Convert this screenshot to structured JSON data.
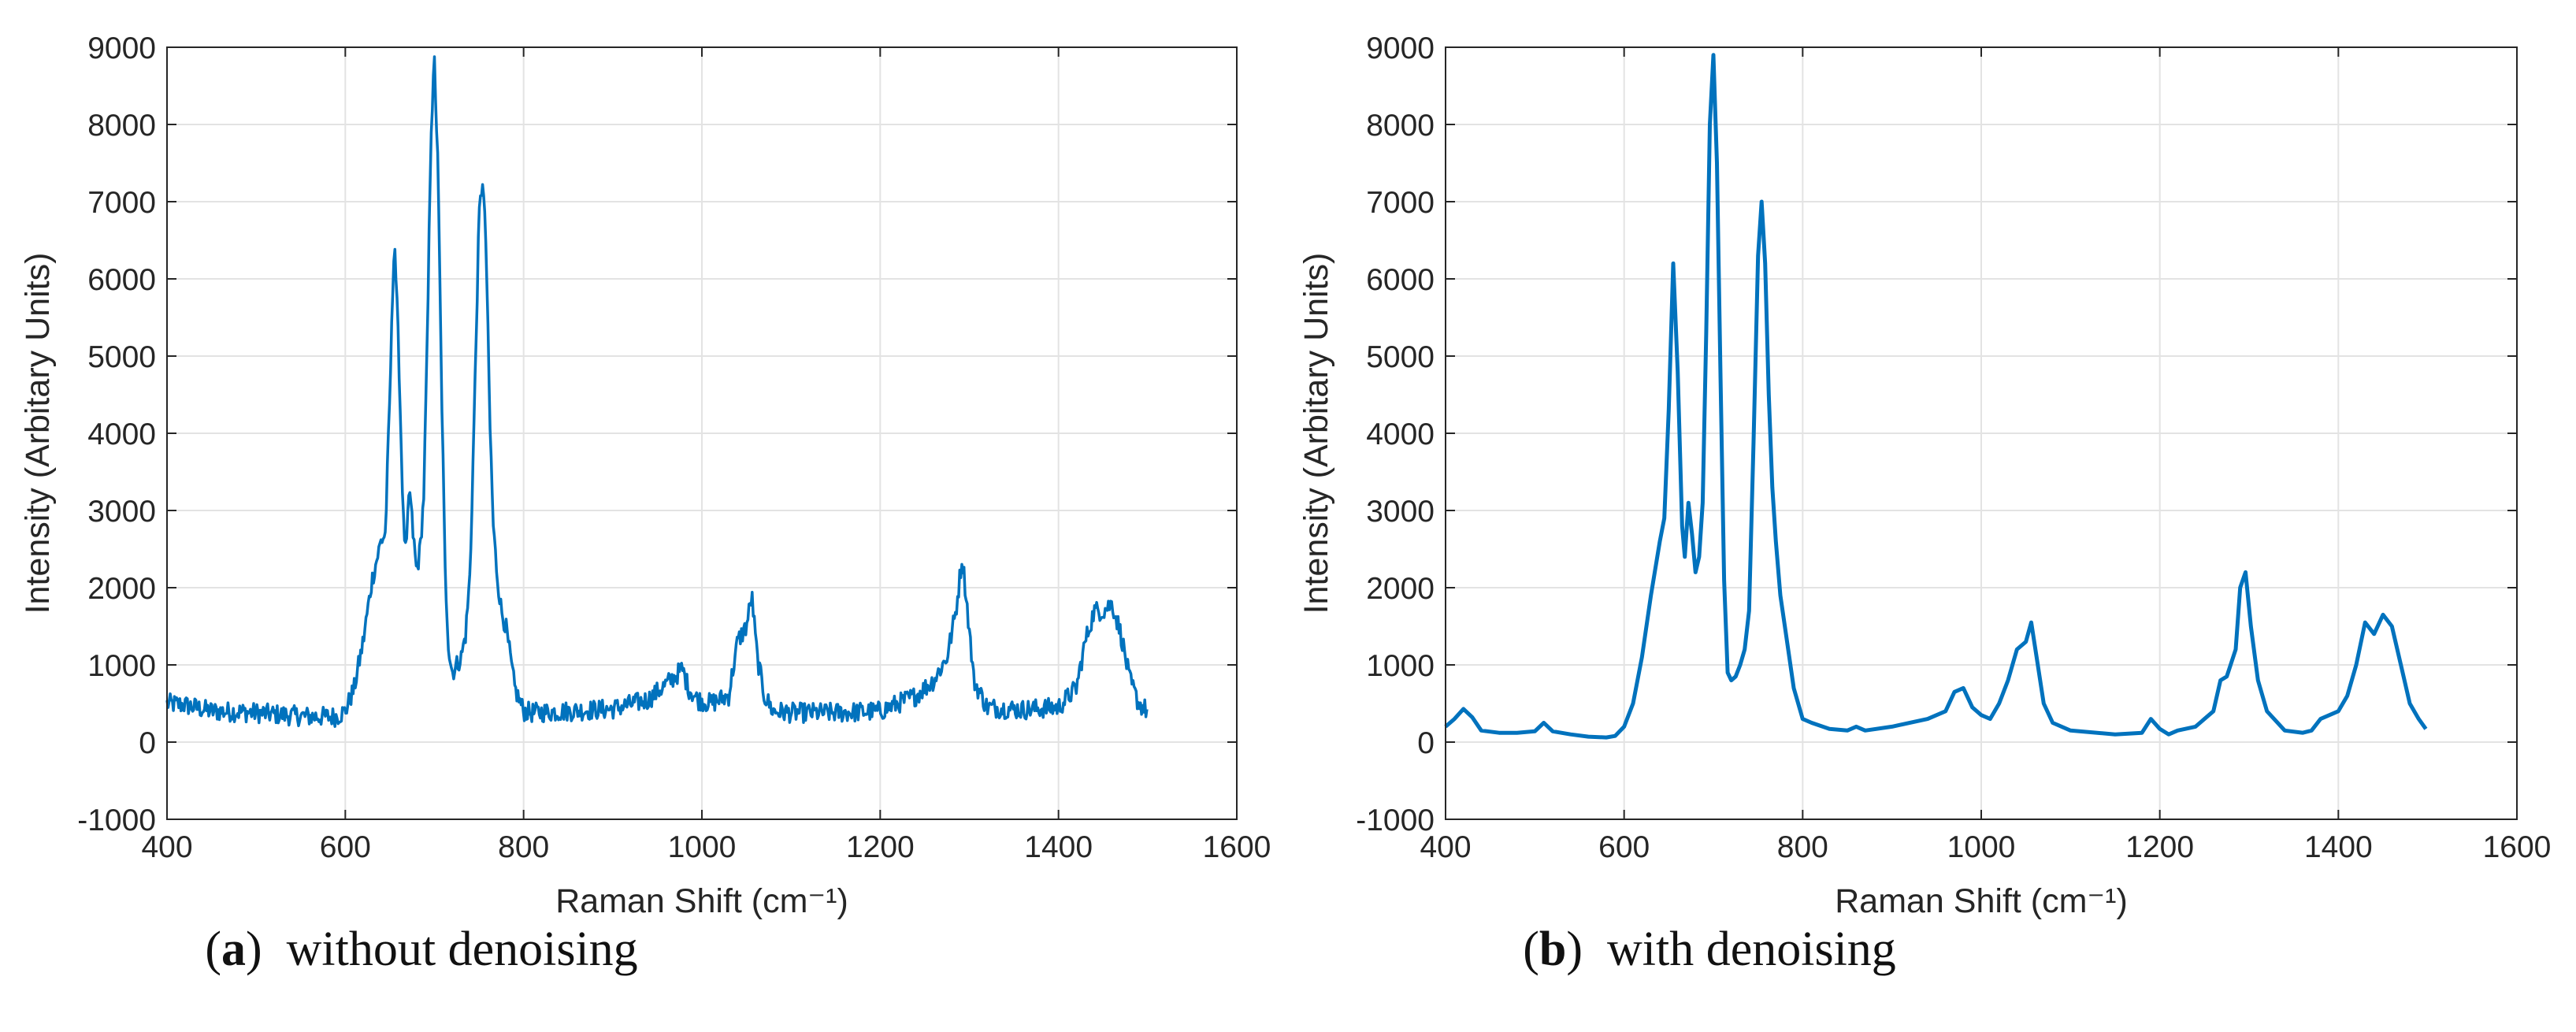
{
  "chart_data": [
    {
      "type": "line",
      "panel_label": "a",
      "caption": "without denoising",
      "xlabel": "Raman Shift (cm⁻¹)",
      "ylabel": "Intensity (Arbitary Units)",
      "xlim": [
        400,
        1600
      ],
      "ylim": [
        -1000,
        9000
      ],
      "xticks": [
        400,
        600,
        800,
        1000,
        1200,
        1400,
        1600
      ],
      "yticks": [
        -1000,
        0,
        1000,
        2000,
        3000,
        4000,
        5000,
        6000,
        7000,
        8000,
        9000
      ],
      "grid": true,
      "line_color": "#0072BD",
      "noisy": true,
      "series": [
        {
          "x": [
            400,
            420,
            450,
            480,
            500,
            520,
            560,
            590,
            600,
            610,
            620,
            630,
            640,
            645,
            650,
            655,
            660,
            665,
            668,
            672,
            676,
            680,
            684,
            688,
            692,
            696,
            700,
            704,
            708,
            712,
            716,
            720,
            725,
            730,
            735,
            740,
            745,
            750,
            754,
            758,
            762,
            766,
            770,
            775,
            780,
            790,
            800,
            810,
            850,
            900,
            940,
            960,
            970,
            978,
            985,
            995,
            1010,
            1030,
            1040,
            1050,
            1056,
            1062,
            1070,
            1080,
            1100,
            1150,
            1200,
            1240,
            1260,
            1275,
            1285,
            1292,
            1298,
            1305,
            1320,
            1360,
            1400,
            1420,
            1430,
            1440,
            1450,
            1460,
            1470,
            1480,
            1490,
            1500
          ],
          "y": [
            500,
            480,
            400,
            390,
            380,
            360,
            330,
            330,
            400,
            700,
            1300,
            2100,
            2600,
            2700,
            4500,
            6600,
            5000,
            2900,
            2400,
            3300,
            2700,
            2200,
            2500,
            3200,
            5200,
            7900,
            8800,
            7400,
            4600,
            2200,
            1200,
            900,
            1000,
            1100,
            1400,
            2200,
            4400,
            6800,
            7300,
            6400,
            4200,
            2800,
            2200,
            1700,
            1500,
            700,
            400,
            380,
            400,
            430,
            550,
            750,
            850,
            950,
            700,
            550,
            500,
            600,
            1300,
            1500,
            1900,
            1100,
            600,
            400,
            380,
            380,
            400,
            600,
            800,
            1100,
            1700,
            2400,
            1700,
            800,
            450,
            420,
            450,
            700,
            1300,
            1700,
            1700,
            1800,
            1400,
            800,
            500,
            400
          ]
        }
      ]
    },
    {
      "type": "line",
      "panel_label": "b",
      "caption": "with denoising",
      "xlabel": "Raman Shift (cm⁻¹)",
      "ylabel": "Intensity (Arbitary Units)",
      "xlim": [
        400,
        1600
      ],
      "ylim": [
        -1000,
        9000
      ],
      "xticks": [
        400,
        600,
        800,
        1000,
        1200,
        1400,
        1600
      ],
      "yticks": [
        -1000,
        0,
        1000,
        2000,
        3000,
        4000,
        5000,
        6000,
        7000,
        8000,
        9000
      ],
      "grid": true,
      "line_color": "#0072BD",
      "noisy": false,
      "series": [
        {
          "x": [
            400,
            410,
            420,
            430,
            440,
            460,
            480,
            500,
            510,
            520,
            540,
            560,
            580,
            590,
            600,
            610,
            620,
            630,
            640,
            645,
            650,
            655,
            660,
            665,
            668,
            672,
            676,
            680,
            684,
            688,
            692,
            696,
            700,
            704,
            708,
            712,
            716,
            720,
            725,
            730,
            735,
            740,
            745,
            750,
            754,
            758,
            762,
            766,
            770,
            775,
            780,
            790,
            800,
            810,
            830,
            850,
            860,
            870,
            900,
            940,
            960,
            970,
            980,
            990,
            1000,
            1010,
            1020,
            1030,
            1040,
            1050,
            1056,
            1062,
            1070,
            1080,
            1100,
            1150,
            1180,
            1190,
            1200,
            1210,
            1220,
            1240,
            1260,
            1268,
            1275,
            1285,
            1290,
            1296,
            1302,
            1310,
            1320,
            1340,
            1360,
            1370,
            1380,
            1390,
            1400,
            1410,
            1420,
            1430,
            1440,
            1450,
            1460,
            1470,
            1480,
            1490,
            1498
          ],
          "y": [
            200,
            300,
            430,
            320,
            150,
            120,
            120,
            140,
            250,
            140,
            100,
            70,
            60,
            80,
            200,
            500,
            1100,
            1900,
            2600,
            2900,
            4300,
            6200,
            4800,
            2800,
            2400,
            3100,
            2700,
            2200,
            2400,
            3100,
            5300,
            8000,
            8900,
            7500,
            4700,
            2100,
            900,
            800,
            850,
            1000,
            1200,
            1700,
            3900,
            6300,
            7000,
            6200,
            4500,
            3300,
            2600,
            1900,
            1500,
            700,
            300,
            250,
            170,
            150,
            200,
            150,
            200,
            300,
            400,
            650,
            700,
            450,
            350,
            300,
            500,
            800,
            1200,
            1300,
            1550,
            1100,
            500,
            250,
            150,
            100,
            120,
            300,
            170,
            100,
            150,
            200,
            400,
            800,
            850,
            1200,
            2000,
            2200,
            1500,
            800,
            400,
            150,
            120,
            150,
            300,
            350,
            400,
            600,
            1000,
            1550,
            1400,
            1650,
            1500,
            1000,
            500,
            300,
            170
          ]
        }
      ]
    }
  ]
}
